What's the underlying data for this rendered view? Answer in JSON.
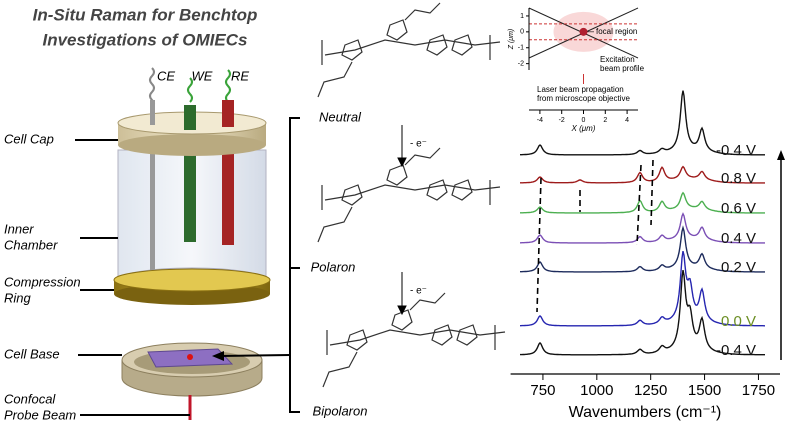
{
  "title": [
    "In-Situ Raman for Benchtop",
    "Investigations of OMIECs"
  ],
  "cell": {
    "electrodes": [
      "CE",
      "WE",
      "RE"
    ],
    "labels": [
      [
        "Cell Cap"
      ],
      [
        "Inner",
        "Chamber"
      ],
      [
        "Compression",
        "Ring"
      ],
      [
        "Cell Base"
      ],
      [
        "Confocal",
        "Probe Beam"
      ]
    ]
  },
  "states": {
    "labels": [
      "Neutral",
      "Polaron",
      "Bipolaron"
    ],
    "steps": [
      "- e⁻",
      "- e⁻"
    ]
  },
  "inset": {
    "ylabel": "Z (μm)",
    "yticks": [
      1,
      0,
      -1,
      -2
    ],
    "ylim": [
      -2.4,
      1.5
    ],
    "xlabel": "X (μm)",
    "xticks": [
      -4,
      -2,
      0,
      2,
      4
    ],
    "xlim": [
      -5,
      5
    ],
    "focal": "focal region",
    "beam": [
      "Excitation",
      "beam profile"
    ],
    "laser": [
      "Laser beam propagation",
      "from microscope objective"
    ]
  },
  "spectra": {
    "labels": [
      "-0.4 V",
      "0.8 V",
      "0.6 V",
      "0.4 V",
      "0.2 V",
      "0.0 V",
      "-0.4 V"
    ],
    "colors": [
      "#111111",
      "#9e1b1b",
      "#4caf50",
      "#7b4fb5",
      "#1d2b5c",
      "#2626b0",
      "#111111"
    ],
    "label_colors": [
      "#111111",
      "#111111",
      "#111111",
      "#111111",
      "#111111",
      "#6b8e23",
      "#111111"
    ],
    "xlabel": "Wavenumbers (cm⁻¹)",
    "xticks": [
      750,
      1000,
      1250,
      1500,
      1750
    ],
    "xlim": [
      600,
      1850
    ]
  }
}
